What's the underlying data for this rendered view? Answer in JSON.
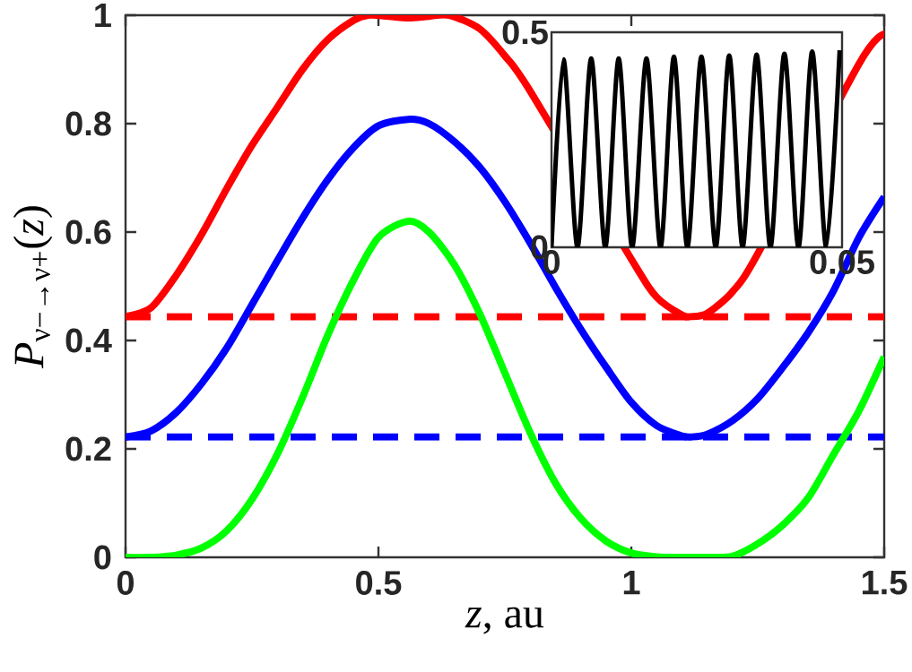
{
  "chart_data": [
    {
      "type": "line",
      "xlabel": "*z*, au",
      "ylabel": "*P*$_{ν−→ν+}$(*z*)",
      "xlim": [
        0,
        1.5
      ],
      "ylim": [
        0,
        1
      ],
      "xticks": [
        0,
        0.5,
        1,
        1.5
      ],
      "yticks": [
        0,
        0.2,
        0.4,
        0.6,
        0.8,
        1
      ],
      "series": [
        {
          "color": "#ff0000",
          "x": [
            0,
            0.05,
            0.1,
            0.15,
            0.2,
            0.25,
            0.3,
            0.35,
            0.4,
            0.45,
            0.48,
            0.52,
            0.559,
            0.6,
            0.64,
            0.7,
            0.75,
            0.8,
            0.85,
            0.9,
            0.95,
            1.0,
            1.05,
            1.1,
            1.118,
            1.15,
            1.2,
            1.25,
            1.3,
            1.35,
            1.4,
            1.45,
            1.5
          ],
          "values": [
            0.444,
            0.46,
            0.52,
            0.595,
            0.68,
            0.76,
            0.83,
            0.9,
            0.955,
            0.99,
            1.0,
            0.998,
            0.995,
            0.998,
            1.0,
            0.975,
            0.925,
            0.86,
            null,
            null,
            null,
            0.55,
            0.48,
            0.447,
            0.444,
            0.45,
            0.49,
            0.56,
            null,
            null,
            null,
            0.91,
            0.965
          ]
        },
        {
          "color": "#0000ff",
          "x": [
            0,
            0.05,
            0.1,
            0.15,
            0.2,
            0.25,
            0.3,
            0.35,
            0.4,
            0.45,
            0.5,
            0.559,
            0.6,
            0.65,
            0.7,
            0.75,
            0.8,
            0.85,
            0.9,
            0.95,
            1.0,
            1.05,
            1.1,
            1.118,
            1.15,
            1.2,
            1.25,
            1.3,
            1.35,
            1.4,
            1.45,
            1.5
          ],
          "values": [
            0.222,
            0.233,
            0.267,
            0.32,
            0.386,
            0.466,
            0.547,
            0.626,
            0.697,
            0.755,
            0.796,
            0.808,
            0.8,
            0.767,
            0.72,
            0.656,
            0.58,
            0.498,
            0.421,
            0.351,
            0.286,
            0.243,
            0.224,
            0.222,
            0.227,
            0.252,
            0.293,
            0.351,
            0.415,
            0.492,
            0.59,
            0.665
          ]
        },
        {
          "color": "#00ff00",
          "x": [
            0,
            0.05,
            0.1,
            0.15,
            0.2,
            0.25,
            0.3,
            0.35,
            0.4,
            0.45,
            0.5,
            0.559,
            0.6,
            0.65,
            0.7,
            0.75,
            0.8,
            0.85,
            0.9,
            0.95,
            1.0,
            1.05,
            1.1,
            1.15,
            1.2,
            1.25,
            1.3,
            1.35,
            1.4,
            1.45,
            1.5
          ],
          "values": [
            0,
            0,
            0.004,
            0.017,
            0.049,
            0.107,
            0.19,
            0.295,
            0.41,
            0.51,
            0.59,
            0.62,
            0.6,
            0.54,
            0.45,
            0.34,
            0.23,
            0.137,
            0.072,
            0.03,
            0.008,
            0.001,
            0,
            0,
            0.002,
            0.025,
            0.06,
            0.11,
            0.19,
            0.27,
            0.37
          ]
        }
      ],
      "ref_lines": [
        {
          "axis": "y",
          "value": 0.444,
          "color": "#ff0000",
          "line_style": "dashed"
        },
        {
          "axis": "y",
          "value": 0.222,
          "color": "#0000ff",
          "line_style": "dashed"
        }
      ]
    },
    {
      "type": "line",
      "xlim": [
        0,
        0.05
      ],
      "ylim": [
        0,
        0.5
      ],
      "xticks": [
        0,
        0.05
      ],
      "yticks": [
        0,
        0.5
      ],
      "series": [
        {
          "color": "#000000",
          "x": [
            0,
            0.00206,
            0.00447,
            0.00683,
            0.00925,
            0.01156,
            0.01388,
            0.01634,
            0.01876,
            0.02107,
            0.02338,
            0.0258,
            0.02826,
            0.03058,
            0.03289,
            0.0353,
            0.03767,
            0.04008,
            0.0425,
            0.04486,
            0.04728,
            0.04959
          ],
          "values": [
            0,
            0.437,
            0,
            0.439,
            0,
            0.439,
            0,
            0.439,
            0,
            0.443,
            0,
            0.443,
            0,
            0.446,
            0,
            0.448,
            0,
            0.45,
            0,
            0.455,
            0,
            0.458
          ]
        }
      ]
    }
  ]
}
